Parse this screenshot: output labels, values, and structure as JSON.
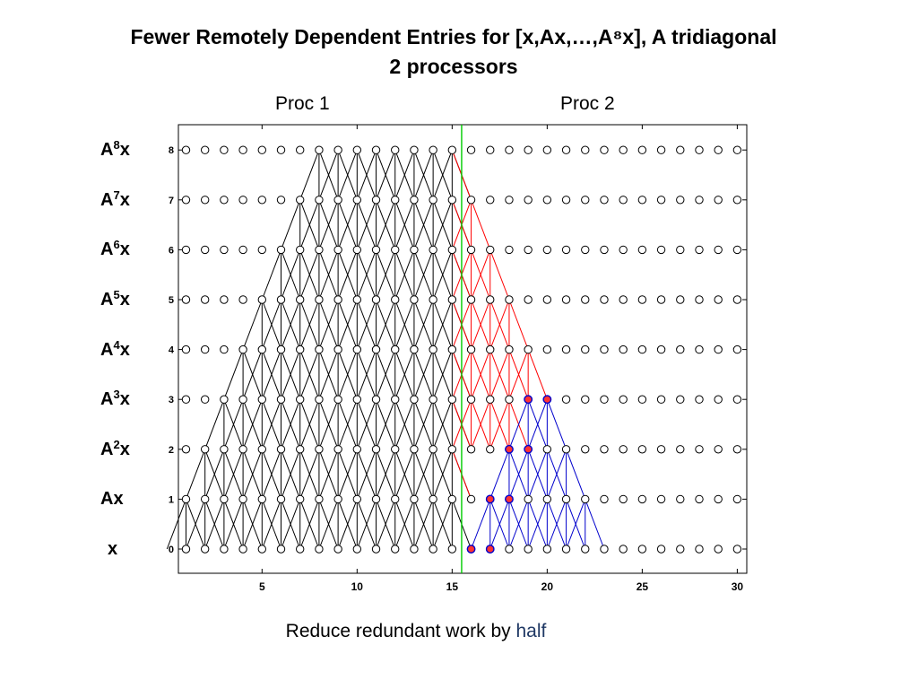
{
  "title_line1": "Fewer Remotely Dependent Entries for [x,Ax,…,A⁸x], A tridiagonal",
  "title_line2": "2 processors",
  "proc_labels": [
    "Proc 1",
    "Proc 2"
  ],
  "row_labels": [
    {
      "base": "x",
      "exp": ""
    },
    {
      "base": "Ax",
      "exp": ""
    },
    {
      "base": "A",
      "exp": "2",
      "suffix": "x"
    },
    {
      "base": "A",
      "exp": "3",
      "suffix": "x"
    },
    {
      "base": "A",
      "exp": "4",
      "suffix": "x"
    },
    {
      "base": "A",
      "exp": "5",
      "suffix": "x"
    },
    {
      "base": "A",
      "exp": "6",
      "suffix": "x"
    },
    {
      "base": "A",
      "exp": "7",
      "suffix": "x"
    },
    {
      "base": "A",
      "exp": "8",
      "suffix": "x"
    }
  ],
  "caption_prefix": "Reduce redundant work by ",
  "caption_highlight": "half",
  "plot": {
    "x_range": [
      1,
      30
    ],
    "levels": [
      0,
      1,
      2,
      3,
      4,
      5,
      6,
      7,
      8
    ],
    "x_ticks": [
      5,
      10,
      15,
      20,
      25,
      30
    ],
    "y_ticks": [
      0,
      1,
      2,
      3,
      4,
      5,
      6,
      7,
      8
    ],
    "partition_x": 15.5,
    "black_targets": {
      "level": 8,
      "from": 8,
      "to": 15
    },
    "red_targets": [
      {
        "level": 7,
        "nodes": [
          16
        ]
      },
      {
        "level": 6,
        "nodes": [
          16,
          17
        ]
      },
      {
        "level": 5,
        "nodes": [
          16,
          17,
          18
        ]
      },
      {
        "level": 4,
        "nodes": [
          16,
          17,
          18,
          19
        ]
      },
      {
        "level": 3,
        "nodes": [
          16,
          17,
          18
        ]
      }
    ],
    "blue_targets": [
      {
        "level": 3,
        "nodes": [
          19,
          20
        ]
      },
      {
        "level": 2,
        "nodes": [
          18,
          19,
          20,
          21
        ]
      },
      {
        "level": 1,
        "nodes": [
          17,
          18,
          19,
          20,
          21,
          22
        ]
      }
    ],
    "filled_markers": [
      {
        "level": 3,
        "nodes": [
          19,
          20
        ]
      },
      {
        "level": 2,
        "nodes": [
          18,
          19
        ]
      },
      {
        "level": 1,
        "nodes": [
          17,
          18
        ]
      },
      {
        "level": 0,
        "nodes": [
          16,
          17
        ]
      }
    ],
    "colors": {
      "black": "#000000",
      "red": "#ff0000",
      "blue": "#0000cc",
      "partition": "#00cc00",
      "marker_fill": "#ff3333"
    }
  }
}
